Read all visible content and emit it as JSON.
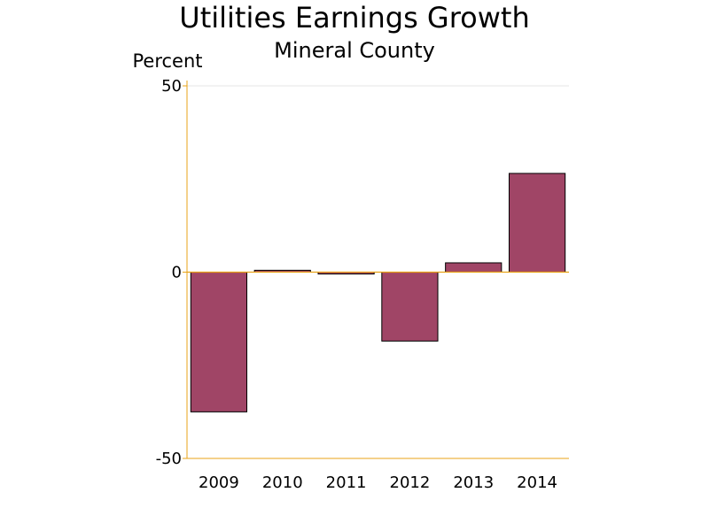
{
  "chart_data": {
    "type": "bar",
    "title": "Utilities Earnings Growth",
    "subtitle": "Mineral County",
    "ylabel": "Percent",
    "xlabel": "",
    "categories": [
      "2009",
      "2010",
      "2011",
      "2012",
      "2013",
      "2014"
    ],
    "values": [
      -37.5,
      0.5,
      -0.5,
      -18.5,
      2.5,
      26.5
    ],
    "ylim": [
      -50,
      50
    ],
    "yticks": [
      {
        "value": 50,
        "label": "50"
      },
      {
        "value": 0,
        "label": "0"
      },
      {
        "value": -50,
        "label": "-50"
      }
    ],
    "grid": true,
    "legend": "none"
  },
  "colors": {
    "bar_fill": "#A04566",
    "bar_stroke": "#000000",
    "axis": "#E8A317",
    "gridline": "#E6E6E6"
  }
}
